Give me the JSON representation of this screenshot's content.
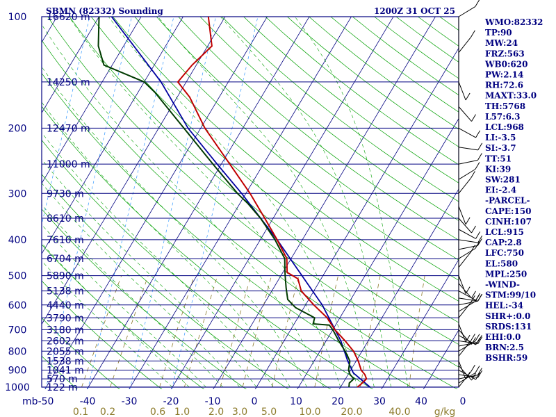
{
  "chart_data": {
    "type": "skew-t",
    "title_left": "SBMN (82332) Sounding",
    "title_right": "1200Z 31 OCT 25",
    "pressure_axis_label": "mb",
    "pressure_ticks": [
      100,
      200,
      300,
      400,
      500,
      600,
      700,
      800,
      900,
      1000
    ],
    "temp_ticks": [
      -50,
      -40,
      -30,
      -20,
      -10,
      0,
      10,
      20,
      30,
      40,
      0
    ],
    "mixing_ratio_ticks": [
      "0.1",
      "0.2",
      "0.6",
      "1.0",
      "2.0",
      "3.0",
      "5.0",
      "10.0",
      "20.0",
      "40.0"
    ],
    "mixing_ratio_unit": "g/kg",
    "height_levels": [
      {
        "label": "16620 m",
        "p": 100
      },
      {
        "label": "14250 m",
        "p": 150
      },
      {
        "label": "12470 m",
        "p": 200
      },
      {
        "label": "11000 m",
        "p": 250
      },
      {
        "label": "9730 m",
        "p": 300
      },
      {
        "label": "8610 m",
        "p": 350
      },
      {
        "label": "7610 m",
        "p": 400
      },
      {
        "label": "6704 m",
        "p": 450
      },
      {
        "label": "5890 m",
        "p": 500
      },
      {
        "label": "5138 m",
        "p": 550
      },
      {
        "label": "4440 m",
        "p": 600
      },
      {
        "label": "3790 m",
        "p": 650
      },
      {
        "label": "3180 m",
        "p": 700
      },
      {
        "label": "2602 m",
        "p": 750
      },
      {
        "label": "2055 m",
        "p": 800
      },
      {
        "label": "1538 m",
        "p": 850
      },
      {
        "label": "1041 m",
        "p": 900
      },
      {
        "label": "570 m",
        "p": 950
      },
      {
        "label": "122 m",
        "p": 1000
      }
    ],
    "temperature_profile": [
      {
        "p": 1000,
        "t": 24.0
      },
      {
        "p": 980,
        "t": 24.5
      },
      {
        "p": 950,
        "t": 25.0
      },
      {
        "p": 925,
        "t": 24.0
      },
      {
        "p": 900,
        "t": 22.5
      },
      {
        "p": 850,
        "t": 20.5
      },
      {
        "p": 800,
        "t": 18.0
      },
      {
        "p": 750,
        "t": 14.5
      },
      {
        "p": 700,
        "t": 10.5
      },
      {
        "p": 650,
        "t": 7.0
      },
      {
        "p": 600,
        "t": 2.0
      },
      {
        "p": 550,
        "t": -3.0
      },
      {
        "p": 510,
        "t": -5.5
      },
      {
        "p": 490,
        "t": -9.0
      },
      {
        "p": 450,
        "t": -11.0
      },
      {
        "p": 400,
        "t": -16.0
      },
      {
        "p": 350,
        "t": -22.0
      },
      {
        "p": 300,
        "t": -29.0
      },
      {
        "p": 250,
        "t": -38.0
      },
      {
        "p": 200,
        "t": -49.0
      },
      {
        "p": 165,
        "t": -57.0
      },
      {
        "p": 150,
        "t": -62.0
      },
      {
        "p": 135,
        "t": -61.0
      },
      {
        "p": 120,
        "t": -59.0
      },
      {
        "p": 100,
        "t": -64.0
      }
    ],
    "dewpoint_profile": [
      {
        "p": 1000,
        "t": 22.0
      },
      {
        "p": 975,
        "t": 21.5
      },
      {
        "p": 950,
        "t": 22.0
      },
      {
        "p": 925,
        "t": 20.5
      },
      {
        "p": 900,
        "t": 19.5
      },
      {
        "p": 850,
        "t": 18.5
      },
      {
        "p": 800,
        "t": 16.0
      },
      {
        "p": 750,
        "t": 13.0
      },
      {
        "p": 700,
        "t": 10.0
      },
      {
        "p": 680,
        "t": 8.5
      },
      {
        "p": 675,
        "t": 4.5
      },
      {
        "p": 650,
        "t": 4.0
      },
      {
        "p": 610,
        "t": -2.0
      },
      {
        "p": 580,
        "t": -5.0
      },
      {
        "p": 540,
        "t": -7.0
      },
      {
        "p": 500,
        "t": -9.0
      },
      {
        "p": 480,
        "t": -10.0
      },
      {
        "p": 450,
        "t": -11.5
      },
      {
        "p": 400,
        "t": -16.5
      },
      {
        "p": 350,
        "t": -23.0
      },
      {
        "p": 320,
        "t": -28.0
      },
      {
        "p": 300,
        "t": -32.0
      },
      {
        "p": 250,
        "t": -42.0
      },
      {
        "p": 200,
        "t": -54.0
      },
      {
        "p": 160,
        "t": -66.0
      },
      {
        "p": 150,
        "t": -70.0
      },
      {
        "p": 135,
        "t": -82.0
      },
      {
        "p": 120,
        "t": -86.0
      },
      {
        "p": 100,
        "t": -90.0
      }
    ],
    "parcel_profile": [
      {
        "p": 1000,
        "t": 27.0
      },
      {
        "p": 950,
        "t": 23.5
      },
      {
        "p": 915,
        "t": 21.0
      },
      {
        "p": 850,
        "t": 18.0
      },
      {
        "p": 750,
        "t": 13.5
      },
      {
        "p": 600,
        "t": 4.0
      },
      {
        "p": 500,
        "t": -5.0
      },
      {
        "p": 400,
        "t": -16.0
      },
      {
        "p": 300,
        "t": -31.0
      },
      {
        "p": 250,
        "t": -41.0
      },
      {
        "p": 200,
        "t": -53.0
      },
      {
        "p": 150,
        "t": -66.0
      },
      {
        "p": 100,
        "t": -87.0
      }
    ],
    "wind_barb_pressures": [
      1000,
      975,
      950,
      925,
      900,
      875,
      850,
      825,
      800,
      775,
      750,
      725,
      700,
      675,
      650,
      625,
      600,
      575,
      550,
      525,
      500,
      475,
      450,
      425,
      400,
      375,
      350,
      325,
      300,
      275,
      250,
      225,
      200,
      175,
      150,
      125,
      100
    ],
    "indices": [
      "WMO:82332",
      "TP:90",
      "MW:24",
      "FRZ:563",
      "WB0:620",
      "PW:2.14",
      "RH:72.6",
      "MAXT:33.0",
      "TH:5768",
      "L57:6.3",
      "LCL:968",
      "LI:-3.5",
      "SI:-3.7",
      "TT:51",
      "KI:39",
      "SW:281",
      "EI:-2.4",
      "-PARCEL-",
      "CAPE:150",
      "CINH:107",
      "LCL:915",
      "CAP:2.8",
      "LFC:750",
      "EL:580",
      "MPL:250",
      "-WIND-",
      "STM:99/10",
      "HEL:-34",
      "SHR+:0.0",
      "SRDS:131",
      "EHI:0.0",
      "BRN:2.5",
      "BSHR:59"
    ],
    "colors": {
      "isobar": "#000080",
      "isotherm": "#000080",
      "dry_adiabat": "#00a000",
      "moist_adiabat": "#00a000",
      "mixing_ratio": "#8c7a2a",
      "isohume_dashed": "#3399ff",
      "temperature": "#c00000",
      "dewpoint": "#003a00",
      "parcel": "#0000a0",
      "labels": "#000080"
    }
  }
}
